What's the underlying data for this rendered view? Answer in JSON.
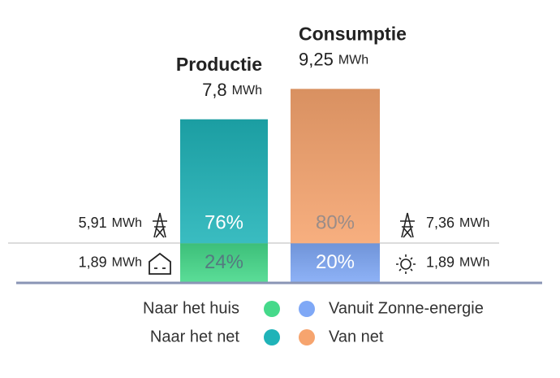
{
  "chart_data": {
    "type": "stacked-bar",
    "categories": [
      "Productie",
      "Consumptie"
    ],
    "totals": [
      7.8,
      9.25
    ],
    "total_labels": [
      "7,8",
      "9,25"
    ],
    "unit": "MWh",
    "series": [
      {
        "name": "Naar het huis",
        "color": "#45d98a",
        "values": [
          1.89,
          null
        ],
        "value_labels": [
          "1,89",
          null
        ],
        "percents": [
          24,
          null
        ],
        "percent_labels": [
          "24%",
          null
        ]
      },
      {
        "name": "Naar het net",
        "color": "#1fb3b8",
        "values": [
          5.91,
          null
        ],
        "value_labels": [
          "5,91",
          null
        ],
        "percents": [
          76,
          null
        ],
        "percent_labels": [
          "76%",
          null
        ]
      },
      {
        "name": "Vanuit Zonne-energie",
        "color": "#7fa8f6",
        "values": [
          null,
          1.89
        ],
        "value_labels": [
          null,
          "1,89"
        ],
        "percents": [
          null,
          20
        ],
        "percent_labels": [
          null,
          "20%"
        ]
      },
      {
        "name": "Van net",
        "color": "#f6a46e",
        "values": [
          null,
          7.36
        ],
        "value_labels": [
          null,
          "7,36"
        ],
        "percents": [
          null,
          80
        ],
        "percent_labels": [
          null,
          "80%"
        ]
      }
    ]
  }
}
